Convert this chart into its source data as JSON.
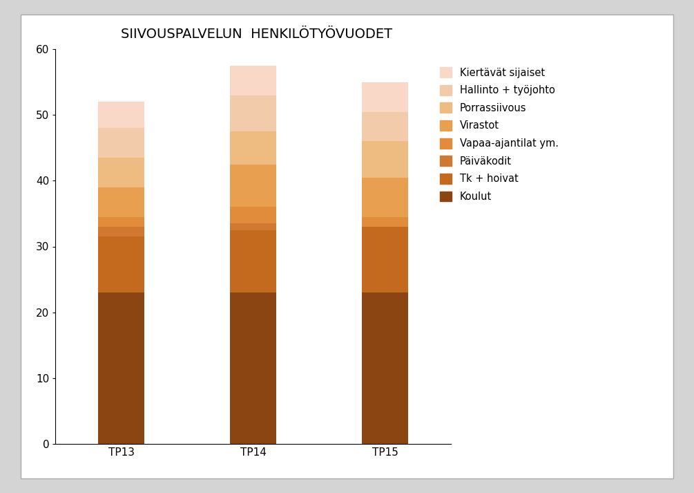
{
  "title": "SIIVOUSPALVELUN  HENKILÖTYÖVUODET",
  "categories": [
    "TP13",
    "TP14",
    "TP15"
  ],
  "segments": [
    {
      "label": "Koulut",
      "color": "#8B4513",
      "values": [
        23.0,
        23.0,
        23.0
      ]
    },
    {
      "label": "Tk + hoivat",
      "color": "#C46A1E",
      "values": [
        8.5,
        9.5,
        10.0
      ]
    },
    {
      "label": "Päiväkodit",
      "color": "#D07830",
      "values": [
        1.5,
        1.0,
        0.0
      ]
    },
    {
      "label": "Vapaa-ajantilat ym.",
      "color": "#E08C3A",
      "values": [
        1.5,
        2.5,
        1.5
      ]
    },
    {
      "label": "Virastot",
      "color": "#E8A050",
      "values": [
        4.5,
        6.5,
        6.0
      ]
    },
    {
      "label": "Porrassiivous",
      "color": "#EEBC80",
      "values": [
        4.5,
        5.0,
        5.5
      ]
    },
    {
      "label": "Hallinto + työjohto",
      "color": "#F2CCAA",
      "values": [
        4.5,
        5.5,
        4.5
      ]
    },
    {
      "label": "Kiertävät sijaiset",
      "color": "#FAD8C8",
      "values": [
        4.0,
        4.5,
        4.5
      ]
    }
  ],
  "ylim": [
    0,
    60
  ],
  "yticks": [
    0,
    10,
    20,
    30,
    40,
    50,
    60
  ],
  "bar_width": 0.35,
  "title_fontsize": 14,
  "tick_fontsize": 11,
  "legend_fontsize": 10.5,
  "plot_bgcolor": "#ffffff",
  "figure_facecolor": "#d4d4d4",
  "frame_facecolor": "#ffffff"
}
